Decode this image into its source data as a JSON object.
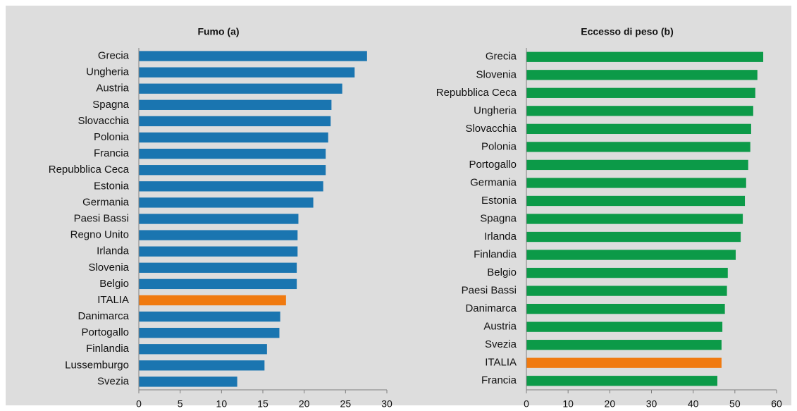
{
  "chart_data": [
    {
      "type": "barh",
      "title": "Fumo (a)",
      "categories": [
        "Grecia",
        "Ungheria",
        "Austria",
        "Spagna",
        "Slovacchia",
        "Polonia",
        "Francia",
        "Repubblica Ceca",
        "Estonia",
        "Germania",
        "Paesi Bassi",
        "Regno Unito",
        "Irlanda",
        "Slovenia",
        "Belgio",
        "ITALIA",
        "Danimarca",
        "Portogallo",
        "Finlandia",
        "Lussemburgo",
        "Svezia"
      ],
      "values": [
        27.6,
        26.1,
        24.6,
        23.3,
        23.2,
        22.9,
        22.6,
        22.6,
        22.3,
        21.1,
        19.3,
        19.2,
        19.2,
        19.1,
        19.1,
        17.8,
        17.1,
        17.0,
        15.5,
        15.2,
        11.9
      ],
      "colors": [
        "#1a75b0",
        "#1a75b0",
        "#1a75b0",
        "#1a75b0",
        "#1a75b0",
        "#1a75b0",
        "#1a75b0",
        "#1a75b0",
        "#1a75b0",
        "#1a75b0",
        "#1a75b0",
        "#1a75b0",
        "#1a75b0",
        "#1a75b0",
        "#1a75b0",
        "#f07a10",
        "#1a75b0",
        "#1a75b0",
        "#1a75b0",
        "#1a75b0",
        "#1a75b0"
      ],
      "xlim": [
        0,
        30
      ],
      "xticks": [
        0,
        5,
        10,
        15,
        20,
        25,
        30
      ]
    },
    {
      "type": "barh",
      "title": "Eccesso di peso (b)",
      "categories": [
        "Grecia",
        "Slovenia",
        "Repubblica Ceca",
        "Ungheria",
        "Slovacchia",
        "Polonia",
        "Portogallo",
        "Germania",
        "Estonia",
        "Spagna",
        "Irlanda",
        "Finlandia",
        "Belgio",
        "Paesi Bassi",
        "Danimarca",
        "Austria",
        "Svezia",
        "ITALIA",
        "Francia"
      ],
      "values": [
        56.8,
        55.4,
        54.9,
        54.4,
        53.9,
        53.7,
        53.2,
        52.7,
        52.4,
        51.9,
        51.4,
        50.2,
        48.3,
        48.1,
        47.6,
        47.0,
        46.8,
        46.8,
        45.8
      ],
      "colors": [
        "#0c9a48",
        "#0c9a48",
        "#0c9a48",
        "#0c9a48",
        "#0c9a48",
        "#0c9a48",
        "#0c9a48",
        "#0c9a48",
        "#0c9a48",
        "#0c9a48",
        "#0c9a48",
        "#0c9a48",
        "#0c9a48",
        "#0c9a48",
        "#0c9a48",
        "#0c9a48",
        "#0c9a48",
        "#f07a10",
        "#0c9a48"
      ],
      "xlim": [
        0,
        60
      ],
      "xticks": [
        0,
        10,
        20,
        30,
        40,
        50,
        60
      ]
    }
  ]
}
